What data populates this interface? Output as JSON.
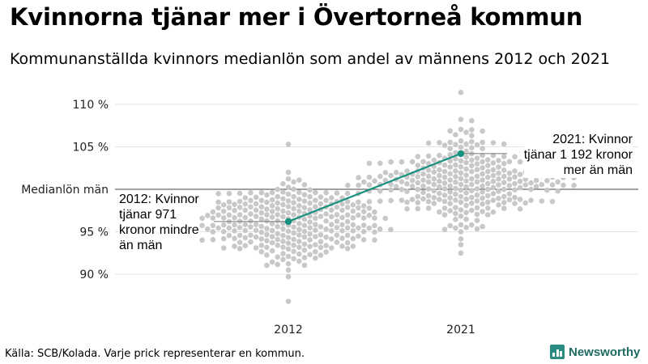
{
  "title": "Kvinnorna tjänar mer i Övertorneå kommun",
  "subtitle": "Kommunanställda kvinnors medianlön som andel av männens 2012 och 2021",
  "source": "Källa: SCB/Kolada. Varje prick representerar en kommun.",
  "brand": {
    "name": "Newsworthy",
    "accent": "#2a8c80"
  },
  "chart_data": {
    "type": "scatter",
    "subtype": "beeswarm-with-highlighted-line",
    "categories": [
      "2012",
      "2021"
    ],
    "y_ticks": [
      {
        "value": 90,
        "label": "90 %"
      },
      {
        "value": 95,
        "label": "95 %"
      },
      {
        "value": 105,
        "label": "105 %"
      },
      {
        "value": 110,
        "label": "110 %"
      }
    ],
    "reference_line": {
      "value": 100,
      "label": "Medianlön män"
    },
    "ylim": [
      86,
      112
    ],
    "grid": true,
    "dot_color": "#c8c8c8",
    "highlight_color": "#17917f",
    "highlight": {
      "name": "Övertorneå",
      "values": [
        96.2,
        104.2
      ]
    },
    "distributions": [
      {
        "category": "2012",
        "center": 96.0,
        "sd": 2.4,
        "min": 86.8,
        "max": 105.3,
        "count": 290
      },
      {
        "category": "2021",
        "center": 101.0,
        "sd": 2.6,
        "min": 92.5,
        "max": 111.4,
        "count": 290
      }
    ],
    "annotations": [
      {
        "category": "2012",
        "lines": [
          "2012: Kvinnor",
          "tjänar 971",
          "kronor mindre",
          "än män"
        ]
      },
      {
        "category": "2021",
        "lines": [
          "2021: Kvinnor",
          "tjänar 1 192 kronor",
          "mer än män"
        ]
      }
    ]
  }
}
